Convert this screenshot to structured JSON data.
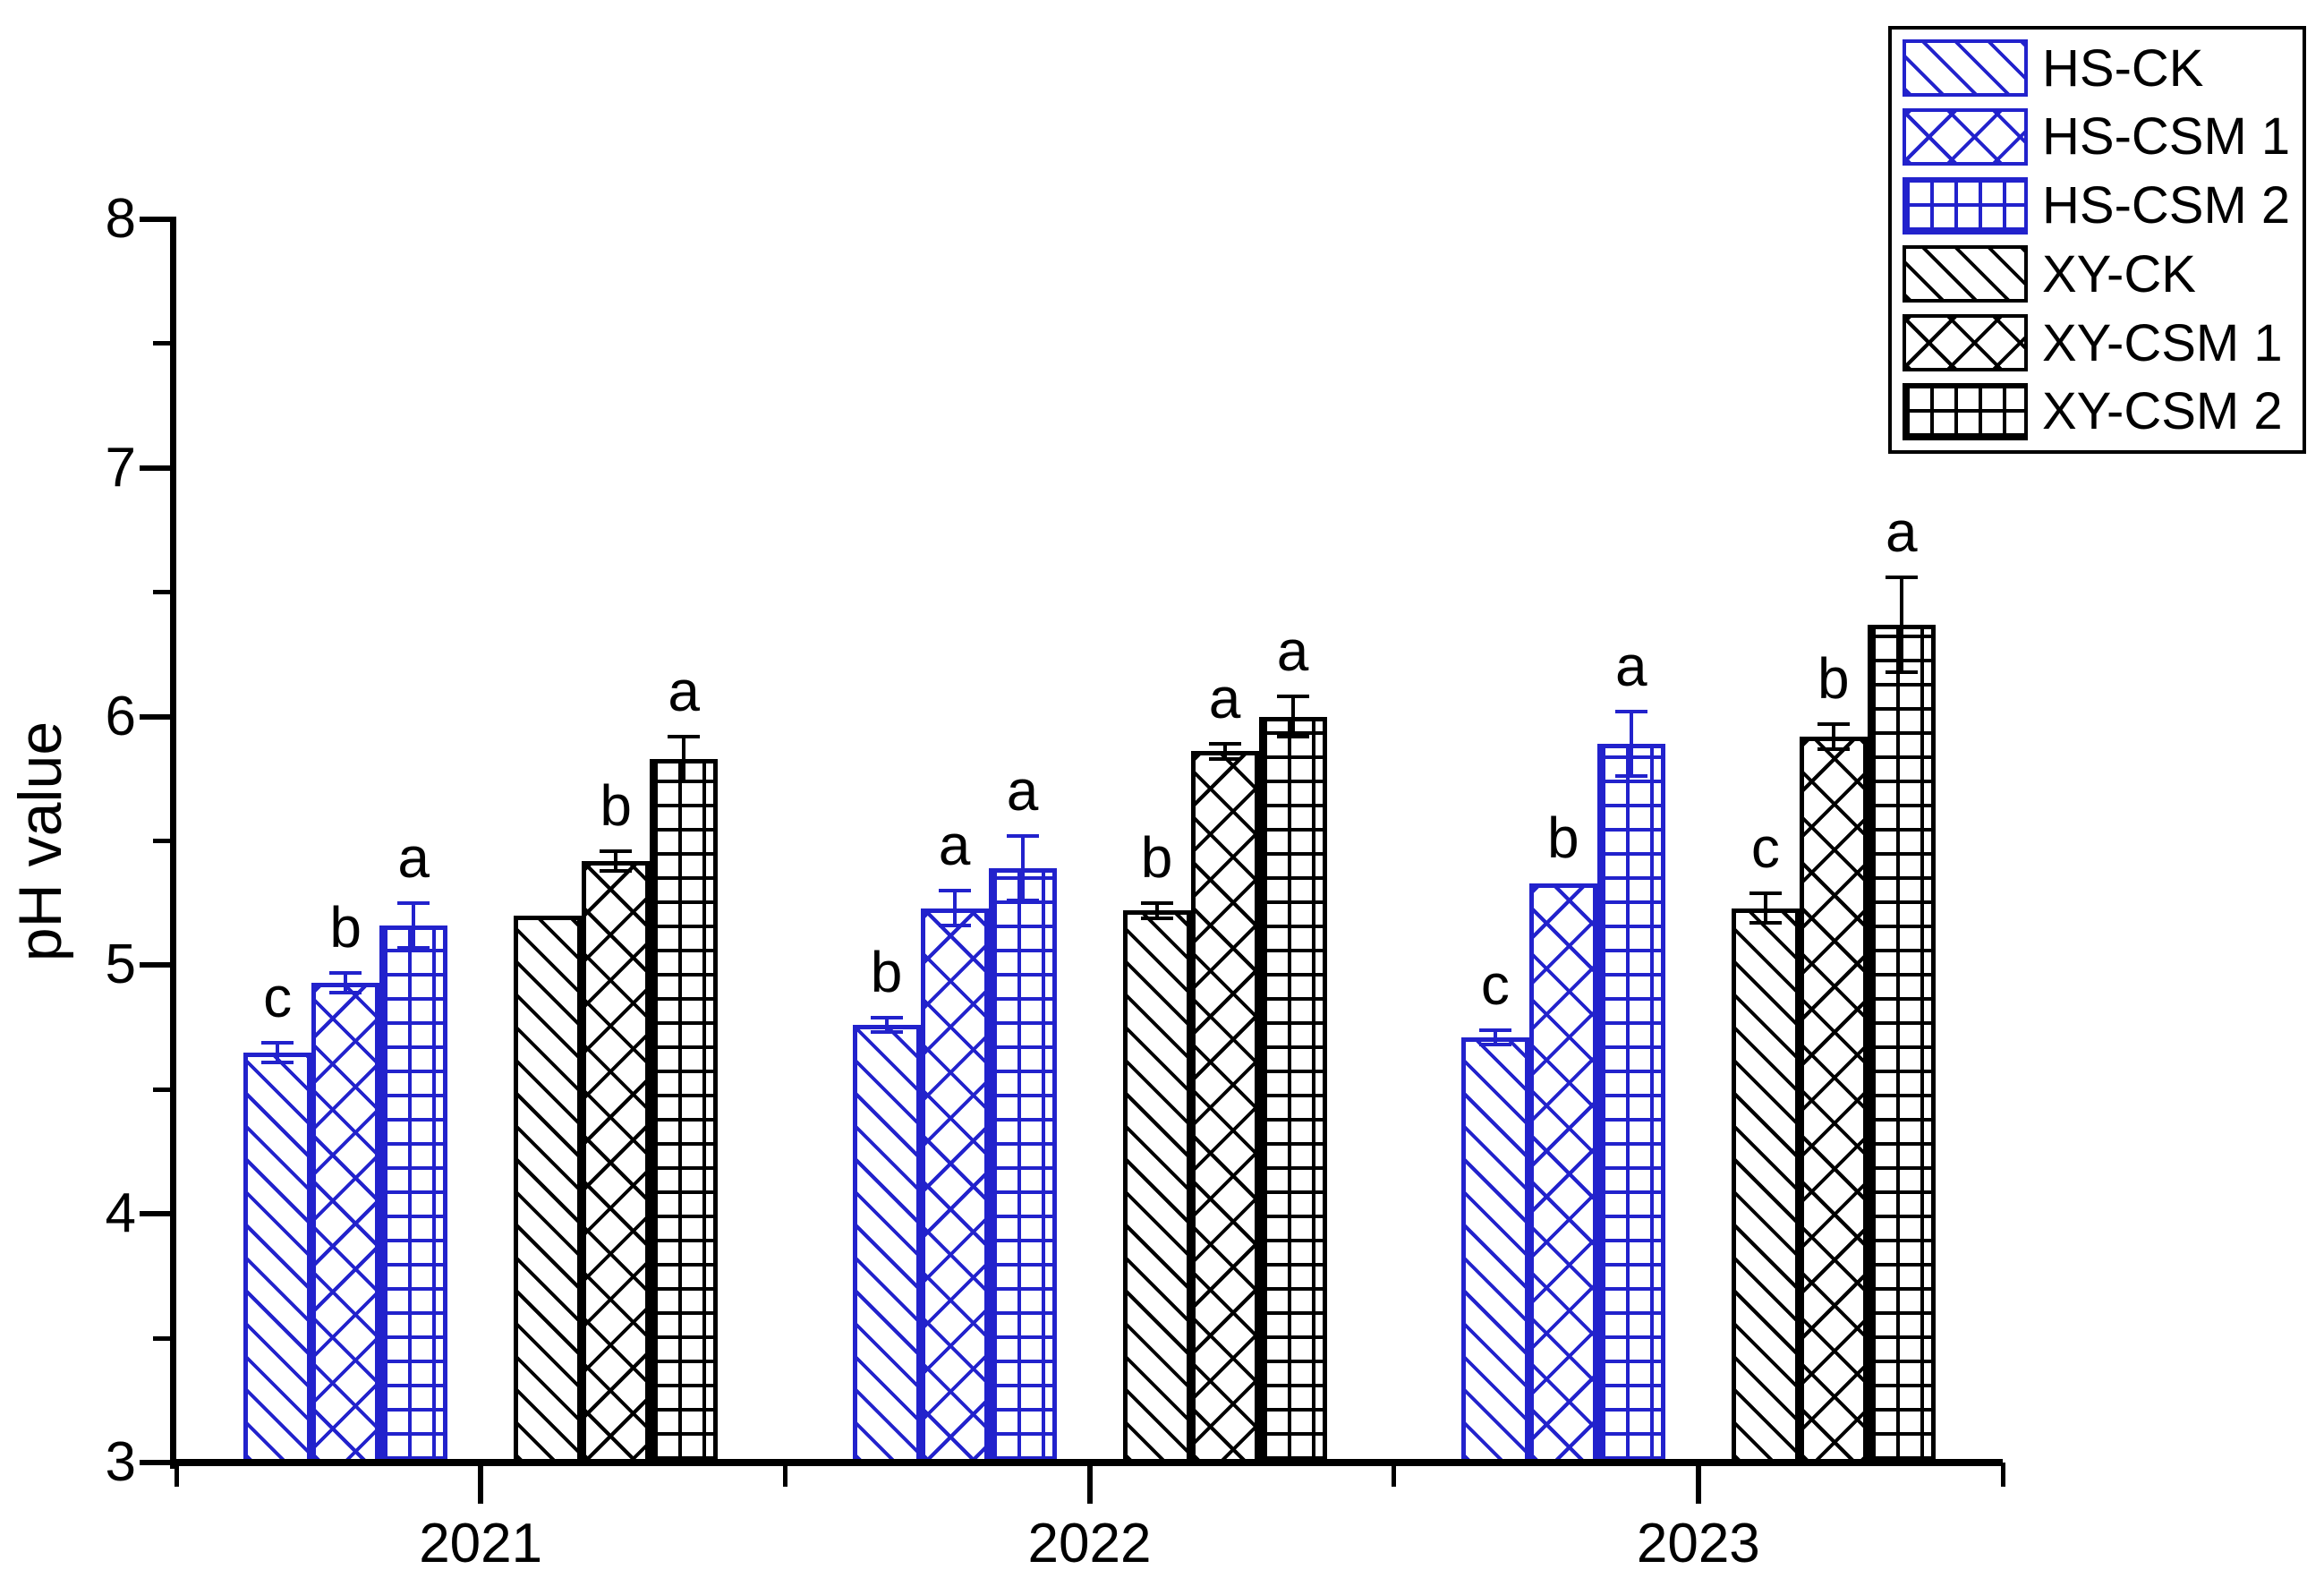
{
  "chart_data": {
    "type": "bar",
    "title": "",
    "ylabel": "pH value",
    "xlabel": "",
    "ylim": [
      3,
      8
    ],
    "yticks": [
      3,
      4,
      5,
      6,
      7,
      8
    ],
    "yminor_tick_step": 0.5,
    "categories": [
      "2021",
      "2022",
      "2023"
    ],
    "series": [
      {
        "name": "HS-CK",
        "color": "#2222cc",
        "hatch": "diag",
        "values": [
          4.65,
          4.76,
          4.71
        ],
        "errors": [
          0.04,
          0.03,
          0.03
        ],
        "letters": [
          "c",
          "b",
          "c"
        ]
      },
      {
        "name": "HS-CSM 1",
        "color": "#2222cc",
        "hatch": "cross",
        "values": [
          4.93,
          5.23,
          5.33
        ],
        "errors": [
          0.04,
          0.07,
          null
        ],
        "letters": [
          "b",
          "a",
          "b"
        ]
      },
      {
        "name": "HS-CSM 2",
        "color": "#2222cc",
        "hatch": "grid",
        "values": [
          5.16,
          5.39,
          5.89
        ],
        "errors": [
          0.09,
          0.13,
          0.13
        ],
        "letters": [
          "a",
          "a",
          "a"
        ]
      },
      {
        "name": "XY-CK",
        "color": "#000000",
        "hatch": "diag",
        "values": [
          5.2,
          5.22,
          5.23
        ],
        "errors": [
          null,
          0.03,
          0.06
        ],
        "letters": [
          null,
          "b",
          "c"
        ]
      },
      {
        "name": "XY-CSM 1",
        "color": "#000000",
        "hatch": "cross",
        "values": [
          5.42,
          5.86,
          5.92
        ],
        "errors": [
          0.04,
          0.03,
          0.05
        ],
        "letters": [
          "b",
          "a",
          "b"
        ]
      },
      {
        "name": "XY-CSM 2",
        "color": "#000000",
        "hatch": "grid",
        "values": [
          5.83,
          6.0,
          6.37
        ],
        "errors": [
          0.09,
          0.08,
          0.19
        ],
        "letters": [
          "a",
          "a",
          "a"
        ]
      }
    ],
    "legend_position": "top-right",
    "grid": false,
    "error_bars": true,
    "significance_letters": true
  },
  "colors": {
    "hs_series_blue": "#2222cc",
    "xy_series_black": "#000000",
    "axis": "#000000",
    "background": "#ffffff"
  }
}
